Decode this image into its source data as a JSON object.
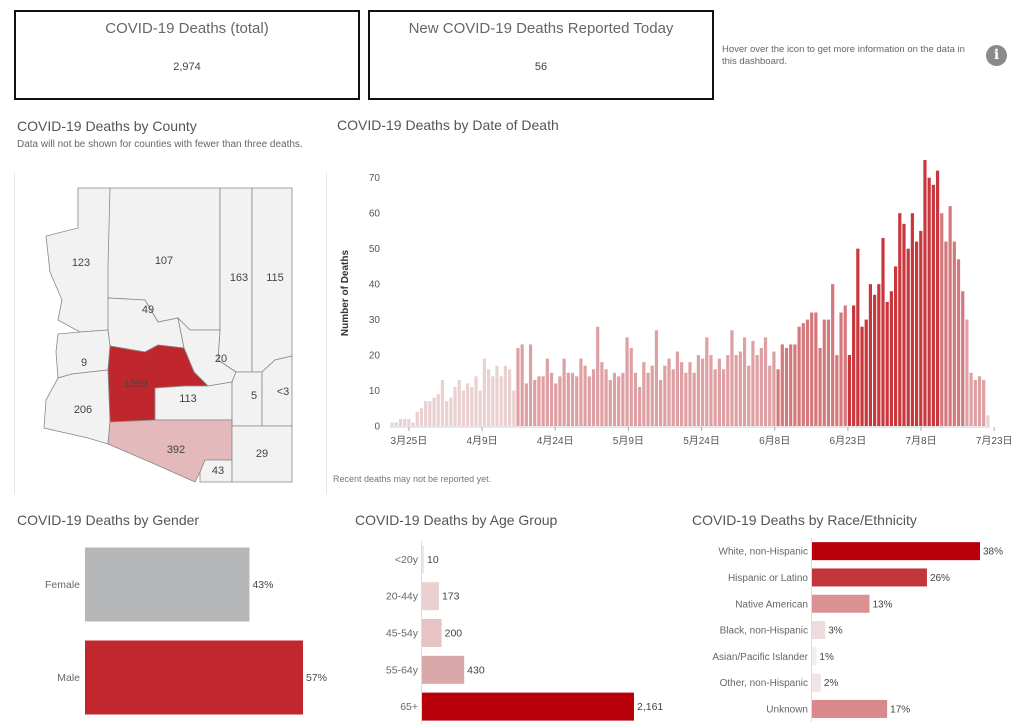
{
  "kpis": {
    "total_title": "COVID-19 Deaths (total)",
    "total_value": "2,974",
    "today_title": "New COVID-19 Deaths Reported Today",
    "today_value": "56"
  },
  "info": {
    "text": "Hover over the icon to get more information on the data in this dashboard.",
    "icon": "info-icon"
  },
  "county": {
    "title": "COVID-19 Deaths by County",
    "subtitle": "Data will not be shown for counties with fewer than three deaths.",
    "labels": [
      "123",
      "107",
      "163",
      "115",
      "49",
      "9",
      "20",
      "1599",
      "206",
      "113",
      "5",
      "<3",
      "392",
      "29",
      "43"
    ]
  },
  "by_date": {
    "title": "COVID-19 Deaths by Date of Death",
    "note": "Recent deaths may not be reported yet."
  },
  "gender": {
    "title": "COVID-19 Deaths by Gender"
  },
  "age": {
    "title": "COVID-19 Deaths by Age Group"
  },
  "race": {
    "title": "COVID-19 Deaths by Race/Ethnicity"
  },
  "colors": {
    "dark_red": "#b8000a",
    "red": "#c9373c",
    "mid": "#d98f92",
    "light": "#e9c9cb",
    "gray": "#b5b7b9"
  },
  "chart_data": [
    {
      "type": "bar",
      "ylabel": "Number of Deaths",
      "ylim": [
        0,
        75
      ],
      "yticks": [
        0,
        10,
        20,
        30,
        40,
        50,
        60,
        70
      ],
      "xtick_labels": [
        "3月25日",
        "4月9日",
        "4月24日",
        "5月9日",
        "5月24日",
        "6月8日",
        "6月23日",
        "7月8日",
        "7月23日"
      ],
      "values": [
        1,
        1,
        2,
        2,
        2,
        1,
        4,
        5,
        7,
        7,
        8,
        9,
        13,
        7,
        8,
        11,
        13,
        10,
        12,
        11,
        14,
        10,
        19,
        16,
        14,
        17,
        14,
        17,
        16,
        10,
        22,
        23,
        12,
        23,
        13,
        14,
        14,
        19,
        15,
        12,
        14,
        19,
        15,
        15,
        14,
        19,
        17,
        14,
        16,
        28,
        18,
        16,
        13,
        15,
        14,
        15,
        25,
        22,
        15,
        11,
        18,
        15,
        17,
        27,
        13,
        17,
        19,
        16,
        21,
        18,
        15,
        18,
        15,
        20,
        19,
        25,
        20,
        16,
        19,
        16,
        20,
        27,
        20,
        21,
        25,
        17,
        24,
        20,
        22,
        25,
        17,
        21,
        16,
        23,
        22,
        23,
        23,
        28,
        29,
        30,
        32,
        32,
        22,
        30,
        30,
        40,
        20,
        32,
        34,
        20,
        34,
        50,
        28,
        30,
        40,
        37,
        40,
        53,
        35,
        38,
        45,
        60,
        57,
        50,
        60,
        52,
        55,
        75,
        70,
        68,
        72,
        60,
        52,
        62,
        52,
        47,
        38,
        30,
        15,
        13,
        14,
        13,
        3
      ],
      "shades": [
        4,
        4,
        4,
        4,
        4,
        4,
        4,
        4,
        4,
        4,
        4,
        4,
        4,
        4,
        4,
        4,
        4,
        4,
        4,
        4,
        4,
        4,
        4,
        4,
        4,
        4,
        4,
        4,
        4,
        4,
        3,
        3,
        3,
        3,
        3,
        3,
        3,
        3,
        3,
        3,
        3,
        3,
        3,
        3,
        3,
        3,
        3,
        3,
        3,
        3,
        3,
        3,
        3,
        3,
        3,
        3,
        3,
        3,
        3,
        3,
        3,
        3,
        3,
        3,
        3,
        3,
        3,
        3,
        3,
        3,
        3,
        3,
        3,
        3,
        3,
        3,
        3,
        3,
        3,
        3,
        3,
        3,
        3,
        3,
        3,
        3,
        3,
        3,
        3,
        3,
        3,
        3,
        2,
        2,
        2,
        2,
        2,
        2,
        2,
        2,
        2,
        2,
        2,
        2,
        2,
        2,
        2,
        2,
        2,
        1,
        1,
        1,
        1,
        1,
        1,
        1,
        1,
        1,
        1,
        1,
        1,
        1,
        1,
        1,
        1,
        1,
        1,
        1,
        1,
        1,
        1,
        2,
        2,
        2,
        2,
        2,
        2,
        3,
        3,
        3,
        3,
        3,
        4
      ]
    },
    {
      "type": "bar",
      "orientation": "horizontal",
      "categories": [
        "Female",
        "Male"
      ],
      "values": [
        43,
        57
      ],
      "labels": [
        "43%",
        "57%"
      ],
      "colors": [
        "#b5b7b9",
        "#c1272d"
      ]
    },
    {
      "type": "bar",
      "orientation": "horizontal",
      "categories": [
        "<20y",
        "20-44y",
        "45-54y",
        "55-64y",
        "65+"
      ],
      "values": [
        10,
        173,
        200,
        430,
        2161
      ],
      "labels": [
        "10",
        "173",
        "200",
        "430",
        "2,161"
      ],
      "colors": [
        "#f4e4e5",
        "#ead0d1",
        "#e6c4c6",
        "#dba8aa",
        "#b8000a"
      ]
    },
    {
      "type": "bar",
      "orientation": "horizontal",
      "categories": [
        "White, non-Hispanic",
        "Hispanic or Latino",
        "Native American",
        "Black, non-Hispanic",
        "Asian/Pacific Islander",
        "Other, non-Hispanic",
        "Unknown"
      ],
      "values": [
        38,
        26,
        13,
        3,
        1,
        2,
        17
      ],
      "labels": [
        "38%",
        "26%",
        "13%",
        "3%",
        "1%",
        "2%",
        "17%"
      ],
      "colors": [
        "#b8000a",
        "#c2363b",
        "#d99194",
        "#eddcdd",
        "#f5eced",
        "#f1e4e5",
        "#d9898c"
      ]
    }
  ]
}
